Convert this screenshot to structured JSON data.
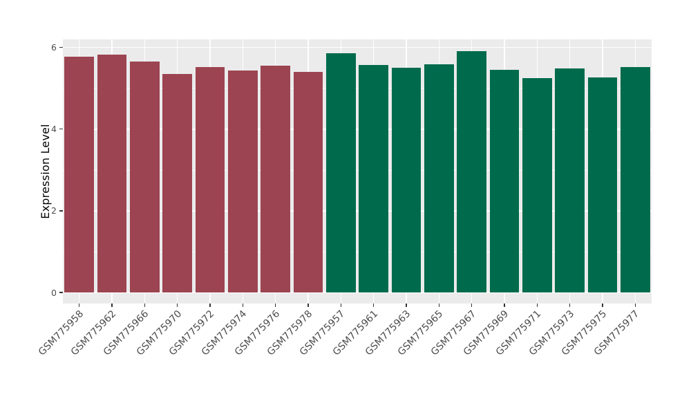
{
  "chart_data": {
    "type": "bar",
    "title": "",
    "xlabel": "",
    "ylabel": "Expression Level",
    "categories": [
      "GSM775958",
      "GSM775962",
      "GSM775966",
      "GSM775970",
      "GSM775972",
      "GSM775974",
      "GSM775976",
      "GSM775978",
      "GSM775957",
      "GSM775961",
      "GSM775963",
      "GSM775965",
      "GSM775967",
      "GSM775969",
      "GSM775971",
      "GSM775973",
      "GSM775975",
      "GSM775977"
    ],
    "values": [
      5.78,
      5.83,
      5.65,
      5.36,
      5.53,
      5.43,
      5.56,
      5.4,
      5.86,
      5.57,
      5.51,
      5.59,
      5.92,
      5.46,
      5.25,
      5.49,
      5.26,
      5.53
    ],
    "bar_groups": [
      "group1",
      "group1",
      "group1",
      "group1",
      "group1",
      "group1",
      "group1",
      "group1",
      "group2",
      "group2",
      "group2",
      "group2",
      "group2",
      "group2",
      "group2",
      "group2",
      "group2",
      "group2"
    ],
    "group_colors": {
      "group1": "#9C4451",
      "group2": "#006B4C"
    },
    "ylim": [
      -0.27,
      6.2
    ],
    "yticks": [
      0,
      2,
      4,
      6
    ],
    "ytick_labels": [
      "0",
      "2",
      "4",
      "6"
    ],
    "yticks_minor": [
      1,
      3,
      5
    ],
    "bar_width_fraction": 0.9,
    "x_label_angle": -45,
    "grid": "on",
    "legend_position": "none",
    "panel_background": "#EBEBEB",
    "gridline_color": "#FFFFFF",
    "axis_text_color": "#4D4D4D",
    "tick_mark_color": "#333333",
    "figure_background": "#FFFFFF"
  }
}
